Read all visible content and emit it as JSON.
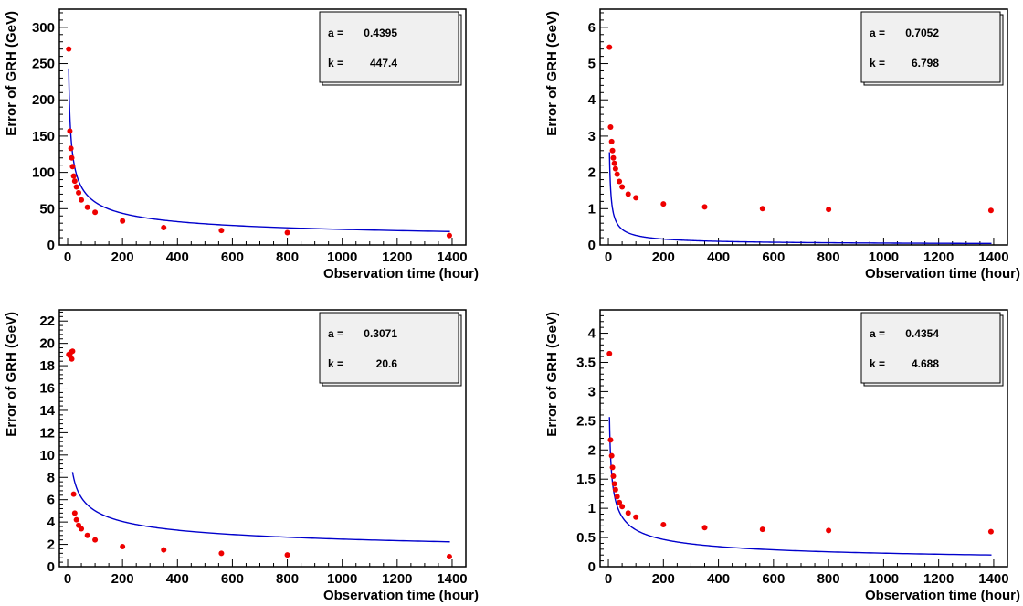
{
  "chart_data": [
    {
      "type": "scatter",
      "xlabel": "Observation time (hour)",
      "ylabel": "Error of GRH (GeV)",
      "xlim": [
        -30,
        1450
      ],
      "ylim": [
        0,
        325
      ],
      "xticks": [
        0,
        200,
        400,
        600,
        800,
        1000,
        1200,
        1400
      ],
      "yticks": [
        0,
        50,
        100,
        150,
        200,
        250,
        300
      ],
      "points_x": [
        4,
        8,
        12,
        15,
        18,
        22,
        26,
        32,
        40,
        50,
        72,
        100,
        200,
        350,
        560,
        800,
        1390
      ],
      "points_y": [
        270,
        157,
        133,
        120,
        108,
        95,
        88,
        80,
        72,
        62,
        52,
        45,
        33,
        24,
        20,
        17,
        13
      ],
      "fit": {
        "type": "power_law",
        "a": 0.4395,
        "k": 447.4
      },
      "stats": [
        {
          "label": "a =",
          "value": "0.4395"
        },
        {
          "label": "k =",
          "value": "447.4"
        }
      ],
      "colors": {
        "points": "#ee0000",
        "fit": "#0000cc"
      }
    },
    {
      "type": "scatter",
      "xlabel": "Observation time (hour)",
      "ylabel": "Error of GRH (GeV)",
      "xlim": [
        -30,
        1450
      ],
      "ylim": [
        0,
        6.5
      ],
      "xticks": [
        0,
        200,
        400,
        600,
        800,
        1000,
        1200,
        1400
      ],
      "yticks": [
        0,
        1,
        2,
        3,
        4,
        5,
        6
      ],
      "points_x": [
        4,
        8,
        12,
        15,
        18,
        22,
        26,
        32,
        40,
        50,
        72,
        100,
        200,
        350,
        560,
        800,
        1390
      ],
      "points_y": [
        5.45,
        3.25,
        2.85,
        2.6,
        2.4,
        2.25,
        2.1,
        1.95,
        1.75,
        1.6,
        1.4,
        1.3,
        1.13,
        1.05,
        1.0,
        0.98,
        0.95
      ],
      "fit": {
        "type": "power_law",
        "a": 0.7052,
        "k": 6.798
      },
      "stats": [
        {
          "label": "a =",
          "value": "0.7052"
        },
        {
          "label": "k =",
          "value": "6.798"
        }
      ],
      "colors": {
        "points": "#ee0000",
        "fit": "#0000cc"
      }
    },
    {
      "type": "scatter",
      "xlabel": "Observation time (hour)",
      "ylabel": "Error of GRH (GeV)",
      "xlim": [
        -30,
        1450
      ],
      "ylim": [
        0,
        23
      ],
      "xticks": [
        0,
        200,
        400,
        600,
        800,
        1000,
        1200,
        1400
      ],
      "yticks": [
        0,
        2,
        4,
        6,
        8,
        10,
        12,
        14,
        16,
        18,
        20,
        22
      ],
      "points_x": [
        4,
        8,
        12,
        15,
        18,
        22,
        26,
        32,
        40,
        50,
        72,
        100,
        200,
        350,
        560,
        800,
        1390
      ],
      "points_y": [
        19.0,
        18.9,
        19.2,
        18.6,
        19.3,
        6.5,
        4.8,
        4.2,
        3.7,
        3.4,
        2.8,
        2.4,
        1.8,
        1.5,
        1.2,
        1.05,
        0.9
      ],
      "fit": {
        "type": "power_law",
        "a": 0.3071,
        "k": 20.6,
        "x_start": 18
      },
      "stats": [
        {
          "label": "a =",
          "value": "0.3071"
        },
        {
          "label": "k =",
          "value": "20.6"
        }
      ],
      "colors": {
        "points": "#ee0000",
        "fit": "#0000cc"
      }
    },
    {
      "type": "scatter",
      "xlabel": "Observation time (hour)",
      "ylabel": "Error of GRH (GeV)",
      "xlim": [
        -30,
        1450
      ],
      "ylim": [
        0,
        4.4
      ],
      "xticks": [
        0,
        200,
        400,
        600,
        800,
        1000,
        1200,
        1400
      ],
      "yticks": [
        0,
        0.5,
        1,
        1.5,
        2,
        2.5,
        3,
        3.5,
        4
      ],
      "points_x": [
        4,
        8,
        12,
        15,
        18,
        22,
        26,
        32,
        40,
        50,
        72,
        100,
        200,
        350,
        560,
        800,
        1390
      ],
      "points_y": [
        3.65,
        2.17,
        1.9,
        1.7,
        1.55,
        1.42,
        1.32,
        1.2,
        1.1,
        1.03,
        0.92,
        0.85,
        0.72,
        0.67,
        0.64,
        0.62,
        0.6
      ],
      "fit": {
        "type": "power_law",
        "a": 0.4354,
        "k": 4.688
      },
      "stats": [
        {
          "label": "a =",
          "value": "0.4354"
        },
        {
          "label": "k =",
          "value": "4.688"
        }
      ],
      "colors": {
        "points": "#ee0000",
        "fit": "#0000cc"
      }
    }
  ]
}
